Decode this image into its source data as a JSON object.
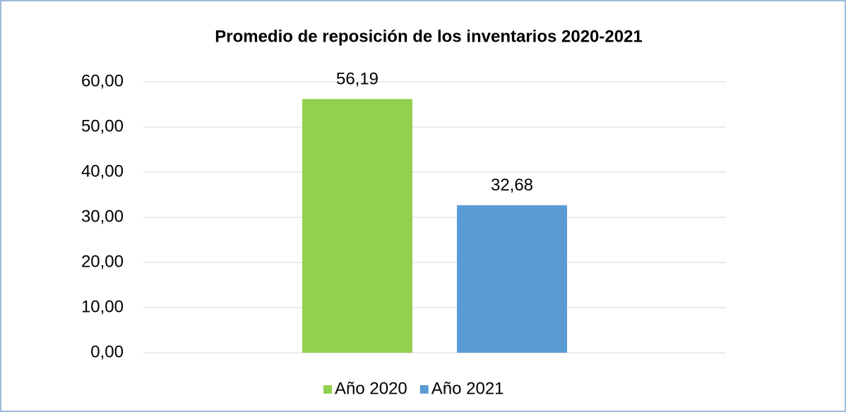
{
  "chart_data": {
    "type": "bar",
    "title": "Promedio de reposición de los inventarios 2020-2021",
    "categories": [
      null
    ],
    "series": [
      {
        "name": "Año 2020",
        "color": "#92d050",
        "values": [
          56.19
        ],
        "value_labels": [
          "56,19"
        ]
      },
      {
        "name": "Año 2021",
        "color": "#5b9bd5",
        "values": [
          32.68
        ],
        "value_labels": [
          "32,68"
        ]
      }
    ],
    "ylim": [
      0,
      60
    ],
    "yticks": [
      {
        "value": 0,
        "label": "0,00"
      },
      {
        "value": 10,
        "label": "10,00"
      },
      {
        "value": 20,
        "label": "20,00"
      },
      {
        "value": 30,
        "label": "30,00"
      },
      {
        "value": 40,
        "label": "40,00"
      },
      {
        "value": 50,
        "label": "50,00"
      },
      {
        "value": 60,
        "label": "60,00"
      }
    ],
    "grid": true,
    "legend": "bottom"
  }
}
